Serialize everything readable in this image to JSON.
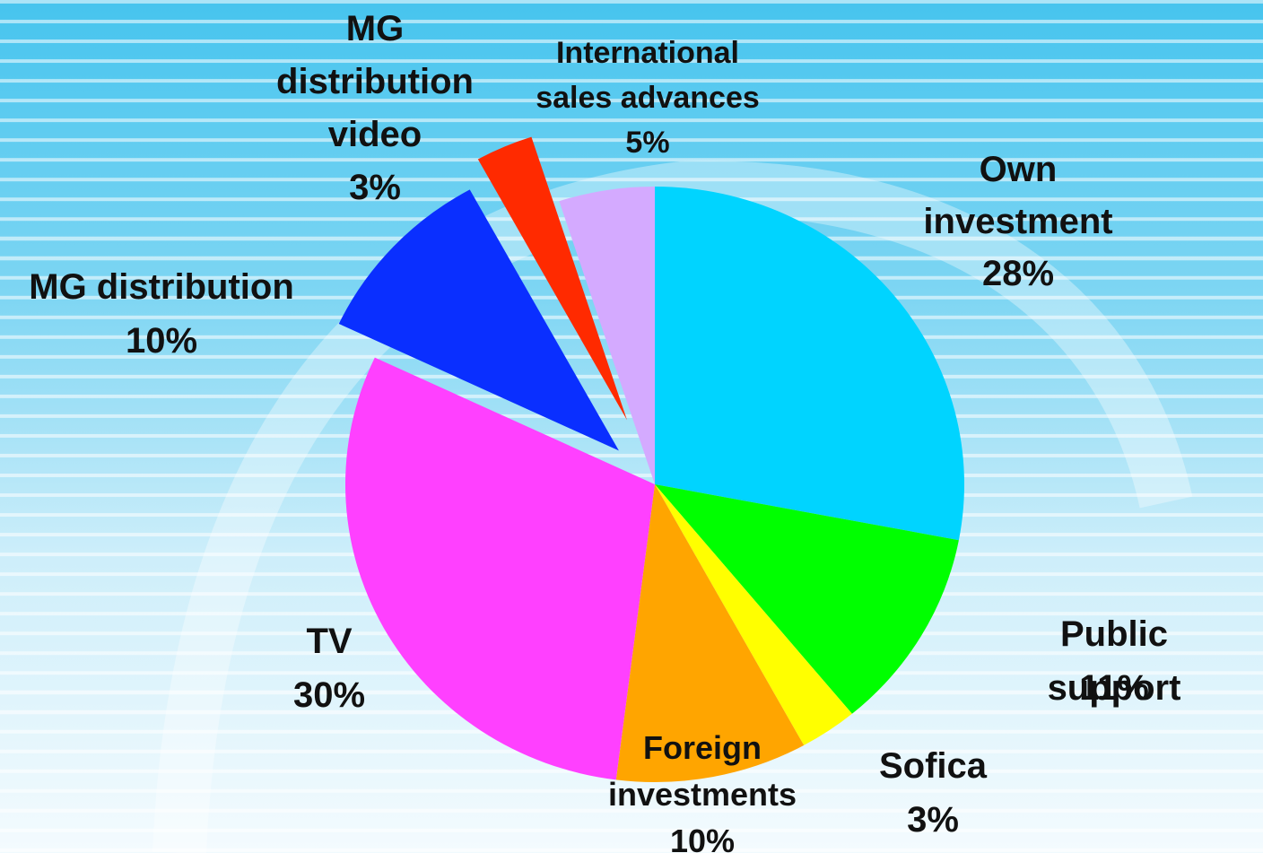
{
  "chart_data": {
    "type": "pie",
    "categories": [
      "Own\ninvestment",
      "Public support",
      "Sofica",
      "Foreign\ninvestments",
      "TV",
      "MG distribution",
      "MG\ndistribution\nvideo",
      "International\nsales advances"
    ],
    "values": [
      28,
      11,
      3,
      10,
      30,
      10,
      3,
      5
    ],
    "value_labels": [
      "28%",
      "11%",
      "3%",
      "10%",
      "30%",
      "10%",
      "3%",
      "5%"
    ],
    "colors": [
      "#00d4ff",
      "#00ff00",
      "#ffff00",
      "#ffa500",
      "#ff40ff",
      "#0a2fff",
      "#ff2a00",
      "#d4aaff"
    ],
    "exploded": [
      false,
      false,
      false,
      false,
      false,
      true,
      true,
      false
    ]
  }
}
